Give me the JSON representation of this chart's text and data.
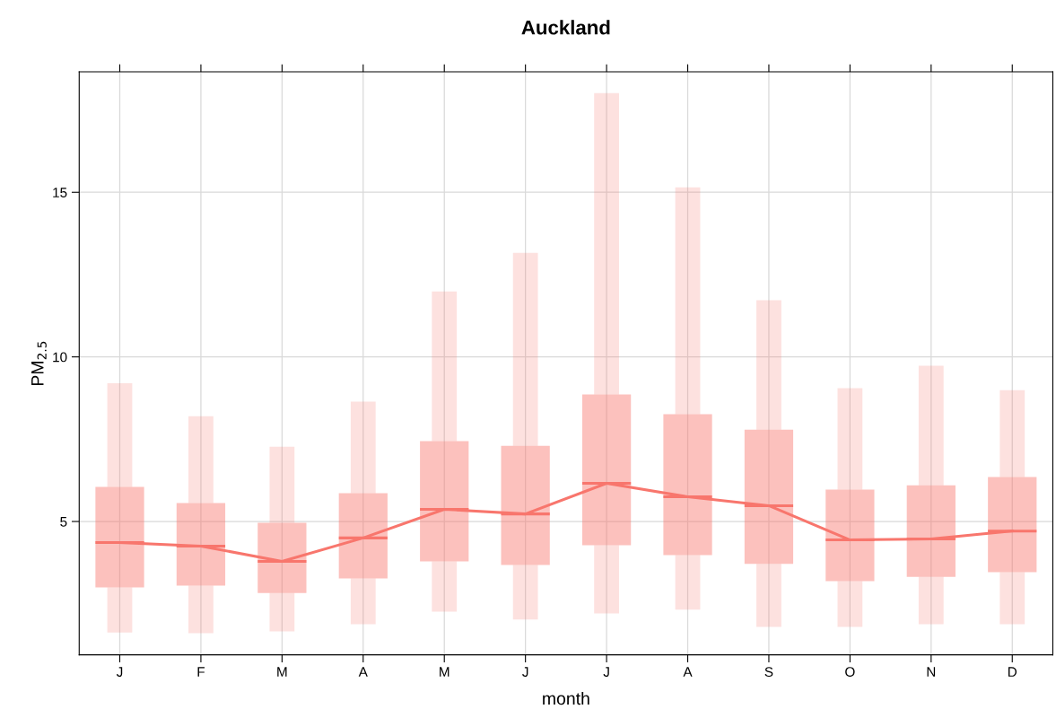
{
  "chart_data": {
    "type": "box",
    "title": "Auckland",
    "xlabel": "month",
    "ylabel": "PM$_{2.5}$",
    "categories": [
      "J",
      "F",
      "M",
      "A",
      "M",
      "J",
      "J",
      "A",
      "S",
      "O",
      "N",
      "D"
    ],
    "ylim": [
      0.95,
      18.66
    ],
    "yticks": [
      5,
      10,
      15
    ],
    "grid": true,
    "series": [
      {
        "type": "box",
        "color": "#f8766d",
        "boxes": [
          {
            "low": 1.63,
            "q1": 3.0,
            "median": 4.36,
            "q3": 6.05,
            "high": 9.2
          },
          {
            "low": 1.61,
            "q1": 3.05,
            "median": 4.25,
            "q3": 5.56,
            "high": 8.2
          },
          {
            "low": 1.66,
            "q1": 2.83,
            "median": 3.79,
            "q3": 4.96,
            "high": 7.27
          },
          {
            "low": 1.88,
            "q1": 3.27,
            "median": 4.5,
            "q3": 5.86,
            "high": 8.64
          },
          {
            "low": 2.26,
            "q1": 3.79,
            "median": 5.37,
            "q3": 7.44,
            "high": 11.99
          },
          {
            "low": 2.02,
            "q1": 3.68,
            "median": 5.23,
            "q3": 7.3,
            "high": 13.16
          },
          {
            "low": 2.21,
            "q1": 4.28,
            "median": 6.16,
            "q3": 8.86,
            "high": 18.01
          },
          {
            "low": 2.32,
            "q1": 3.98,
            "median": 5.75,
            "q3": 8.26,
            "high": 15.15
          },
          {
            "low": 1.8,
            "q1": 3.71,
            "median": 5.48,
            "q3": 7.79,
            "high": 11.72
          },
          {
            "low": 1.8,
            "q1": 3.19,
            "median": 4.44,
            "q3": 5.97,
            "high": 9.05
          },
          {
            "low": 1.88,
            "q1": 3.32,
            "median": 4.47,
            "q3": 6.1,
            "high": 9.73
          },
          {
            "low": 1.88,
            "q1": 3.46,
            "median": 4.71,
            "q3": 6.35,
            "high": 8.99
          }
        ]
      },
      {
        "type": "line",
        "color": "#f8766d",
        "values": [
          4.36,
          4.25,
          3.79,
          4.5,
          5.37,
          5.23,
          6.16,
          5.75,
          5.48,
          4.44,
          4.47,
          4.71
        ]
      }
    ]
  }
}
